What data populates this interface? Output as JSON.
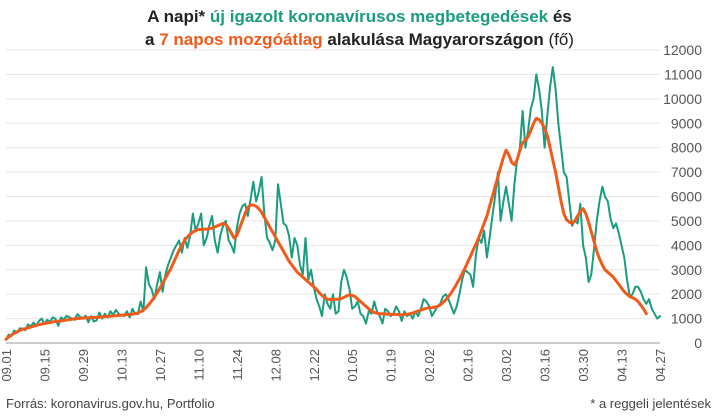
{
  "title": {
    "l1_pre": "A napi* ",
    "l1_green": "új igazolt koronavírusos megbetegedések",
    "l1_post": " és",
    "l2_pre": "a ",
    "l2_orange": "7 napos mozgóátlag",
    "l2_mid": " alakulása Magyarországon ",
    "l2_post": "(fő)"
  },
  "source": "Forrás: koronavirus.gov.hu, Portfolio",
  "note": "* a reggeli jelentések",
  "colors": {
    "daily": "#1a9c7f",
    "avg": "#f05a1a",
    "grid": "#e6e6e6",
    "axis": "#555555"
  },
  "chart_data": {
    "type": "line",
    "x_ticks": [
      "09.01",
      "09.15",
      "09.29",
      "10.13",
      "10.27",
      "11.10",
      "11.24",
      "12.08",
      "12.22",
      "01.05",
      "01.19",
      "02.02",
      "02.16",
      "03.02",
      "03.16",
      "03.30",
      "04.13",
      "04.27"
    ],
    "ylim": [
      0,
      12000
    ],
    "y_ticks": [
      0,
      1000,
      2000,
      3000,
      4000,
      5000,
      6000,
      7000,
      8000,
      9000,
      10000,
      11000,
      12000
    ],
    "grid": true,
    "series": [
      {
        "name": "új igazolt koronavírusos megbetegedések",
        "values": [
          132,
          350,
          292,
          510,
          420,
          600,
          590,
          520,
          760,
          680,
          830,
          710,
          900,
          1000,
          780,
          950,
          870,
          1050,
          990,
          700,
          1050,
          960,
          1110,
          1060,
          1000,
          950,
          1180,
          1070,
          1020,
          1120,
          850,
          1100,
          880,
          930,
          1250,
          1000,
          1200,
          1050,
          1300,
          1150,
          1350,
          1200,
          1140,
          1100,
          1300,
          1050,
          1400,
          1200,
          1180,
          1700,
          1300,
          3100,
          2400,
          2200,
          1800,
          2400,
          2900,
          2100,
          2800,
          3200,
          3500,
          3800,
          4000,
          4200,
          3700,
          4300,
          3900,
          4400,
          5300,
          4600,
          4900,
          5300,
          4000,
          4300,
          4800,
          5200,
          4200,
          3700,
          4400,
          4800,
          5000,
          4200,
          4000,
          3700,
          4700,
          5300,
          5600,
          5700,
          5200,
          5900,
          6600,
          5800,
          6200,
          6800,
          5300,
          4300,
          4100,
          3800,
          4200,
          6500,
          5700,
          4900,
          4800,
          4400,
          3500,
          4300,
          4000,
          3200,
          2800,
          4300,
          2600,
          3000,
          2300,
          1800,
          1500,
          1100,
          2000,
          1600,
          1400,
          2000,
          1200,
          1300,
          2500,
          3000,
          2700,
          2200,
          1400,
          1500,
          1700,
          1200,
          1100,
          800,
          1300,
          1200,
          1700,
          1300,
          1100,
          800,
          1400,
          1300,
          1100,
          1200,
          1500,
          1300,
          900,
          1300,
          1100,
          1200,
          1000,
          1300,
          1100,
          1400,
          1800,
          1700,
          1500,
          1100,
          1300,
          1500,
          1600,
          1900,
          2000,
          1800,
          1500,
          1200,
          1500,
          2000,
          2600,
          3000,
          2900,
          2800,
          2300,
          3600,
          4300,
          4100,
          4600,
          3500,
          4300,
          5200,
          6000,
          7000,
          5000,
          5800,
          6400,
          5700,
          5000,
          6500,
          7500,
          8000,
          9500,
          8000,
          8700,
          9600,
          10000,
          11000,
          10400,
          9500,
          8000,
          9300,
          10500,
          11300,
          10400,
          9000,
          8000,
          7000,
          6800,
          5800,
          4800,
          5000,
          4900,
          5700,
          4000,
          3500,
          2500,
          2800,
          3900,
          5000,
          5800,
          6400,
          6000,
          5800,
          5100,
          4700,
          4900,
          4500,
          4000,
          3500,
          2600,
          1900,
          2000,
          2300,
          2300,
          2100,
          1800,
          1600,
          1800,
          1400,
          1200,
          1000,
          1100
        ]
      },
      {
        "name": "7 napos mozgóátlag",
        "values": [
          150,
          250,
          320,
          400,
          450,
          520,
          560,
          590,
          620,
          650,
          690,
          720,
          750,
          780,
          800,
          820,
          840,
          860,
          880,
          890,
          900,
          920,
          940,
          960,
          980,
          990,
          1000,
          1010,
          1020,
          1030,
          1035,
          1040,
          1045,
          1050,
          1060,
          1070,
          1080,
          1090,
          1100,
          1110,
          1120,
          1130,
          1140,
          1150,
          1160,
          1170,
          1180,
          1200,
          1230,
          1280,
          1350,
          1450,
          1580,
          1720,
          1880,
          2050,
          2250,
          2450,
          2650,
          2850,
          3050,
          3300,
          3550,
          3800,
          4000,
          4200,
          4350,
          4450,
          4550,
          4600,
          4650,
          4650,
          4660,
          4670,
          4680,
          4700,
          4750,
          4800,
          4850,
          4900,
          4850,
          4700,
          4500,
          4300,
          4400,
          4700,
          5000,
          5300,
          5550,
          5650,
          5650,
          5600,
          5500,
          5350,
          5150,
          4950,
          4750,
          4550,
          4350,
          4150,
          3950,
          3750,
          3550,
          3350,
          3200,
          3050,
          2900,
          2800,
          2700,
          2600,
          2500,
          2400,
          2300,
          2200,
          2050,
          1950,
          1850,
          1800,
          1780,
          1780,
          1790,
          1800,
          1820,
          1870,
          1930,
          1980,
          1950,
          1900,
          1800,
          1700,
          1600,
          1500,
          1400,
          1300,
          1250,
          1220,
          1200,
          1200,
          1190,
          1180,
          1180,
          1170,
          1170,
          1160,
          1160,
          1170,
          1180,
          1200,
          1230,
          1270,
          1310,
          1350,
          1390,
          1420,
          1440,
          1450,
          1470,
          1500,
          1560,
          1650,
          1760,
          1900,
          2050,
          2230,
          2420,
          2620,
          2840,
          3060,
          3300,
          3550,
          3800,
          4050,
          4300,
          4600,
          4900,
          5200,
          5600,
          6000,
          6400,
          6800,
          7200,
          7600,
          7900,
          7700,
          7400,
          7300,
          7500,
          7900,
          8200,
          8300,
          8450,
          8700,
          9000,
          9200,
          9150,
          9000,
          8800,
          8500,
          8000,
          7500,
          7000,
          6400,
          5800,
          5300,
          5050,
          4950,
          4900,
          5000,
          5200,
          5400,
          5500,
          5300,
          4950,
          4550,
          4150,
          3750,
          3450,
          3200,
          3000,
          2900,
          2800,
          2700,
          2550,
          2400,
          2250,
          2100,
          2000,
          1900,
          1850,
          1800,
          1700,
          1550,
          1400,
          1200
        ]
      }
    ]
  }
}
